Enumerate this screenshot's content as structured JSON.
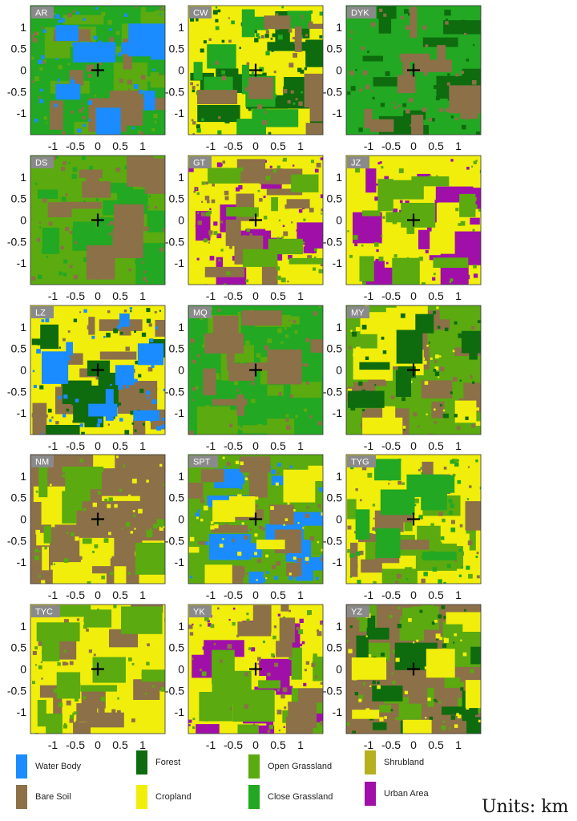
{
  "figure": {
    "units_label": "Units: km"
  },
  "chart_data": {
    "type": "heatmap",
    "grid": "off",
    "x_ticks": [
      "-1",
      "-0.5",
      "0",
      "0.5",
      "1"
    ],
    "y_ticks": [
      "1",
      "0.5",
      "0",
      "-0.5",
      "-1"
    ],
    "xlim": [
      -1.5,
      1.5
    ],
    "ylim": [
      -1.5,
      1.5
    ],
    "marker": "+",
    "marker_position": [
      0,
      0
    ],
    "panels": [
      {
        "label": "AR",
        "base": "close_grassland",
        "patches": [
          "open_grassland",
          "bare_soil",
          "water_body"
        ]
      },
      {
        "label": "CW",
        "base": "cropland",
        "patches": [
          "forest",
          "close_grassland",
          "bare_soil"
        ]
      },
      {
        "label": "DYK",
        "base": "close_grassland",
        "patches": [
          "forest",
          "bare_soil"
        ]
      },
      {
        "label": "DS",
        "base": "open_grassland",
        "patches": [
          "close_grassland",
          "bare_soil"
        ]
      },
      {
        "label": "GT",
        "base": "cropland",
        "patches": [
          "urban_area",
          "bare_soil",
          "open_grassland"
        ]
      },
      {
        "label": "JZ",
        "base": "cropland",
        "patches": [
          "urban_area",
          "open_grassland"
        ]
      },
      {
        "label": "LZ",
        "base": "cropland",
        "patches": [
          "bare_soil",
          "forest",
          "water_body"
        ]
      },
      {
        "label": "MQ",
        "base": "close_grassland",
        "patches": [
          "open_grassland",
          "bare_soil"
        ]
      },
      {
        "label": "MY",
        "base": "open_grassland",
        "patches": [
          "bare_soil",
          "cropland",
          "forest"
        ]
      },
      {
        "label": "NM",
        "base": "bare_soil",
        "patches": [
          "cropland",
          "open_grassland"
        ]
      },
      {
        "label": "SPT",
        "base": "open_grassland",
        "patches": [
          "water_body",
          "bare_soil",
          "cropland"
        ]
      },
      {
        "label": "TYG",
        "base": "cropland",
        "patches": [
          "open_grassland",
          "bare_soil",
          "close_grassland"
        ]
      },
      {
        "label": "TYC",
        "base": "cropland",
        "patches": [
          "bare_soil",
          "open_grassland"
        ]
      },
      {
        "label": "YK",
        "base": "cropland",
        "patches": [
          "urban_area",
          "open_grassland",
          "bare_soil"
        ]
      },
      {
        "label": "YZ",
        "base": "bare_soil",
        "patches": [
          "open_grassland",
          "forest",
          "cropland"
        ]
      }
    ],
    "legend_position": "bottom",
    "legend": [
      {
        "key": "water_body",
        "label": "Water Body",
        "color": "#1a8cff"
      },
      {
        "key": "bare_soil",
        "label": "Bare Soil",
        "color": "#8c7048"
      },
      {
        "key": "forest",
        "label": "Forest",
        "color": "#0e6b0e"
      },
      {
        "key": "cropland",
        "label": "Cropland",
        "color": "#f0ee0a"
      },
      {
        "key": "open_grassland",
        "label": "Open Grassland",
        "color": "#5aaa10"
      },
      {
        "key": "close_grassland",
        "label": "Close Grassland",
        "color": "#22a822"
      },
      {
        "key": "shrubland",
        "label": "Shrubland",
        "color": "#b5b01e"
      },
      {
        "key": "urban_area",
        "label": "Urban Area",
        "color": "#a010a8"
      }
    ]
  }
}
